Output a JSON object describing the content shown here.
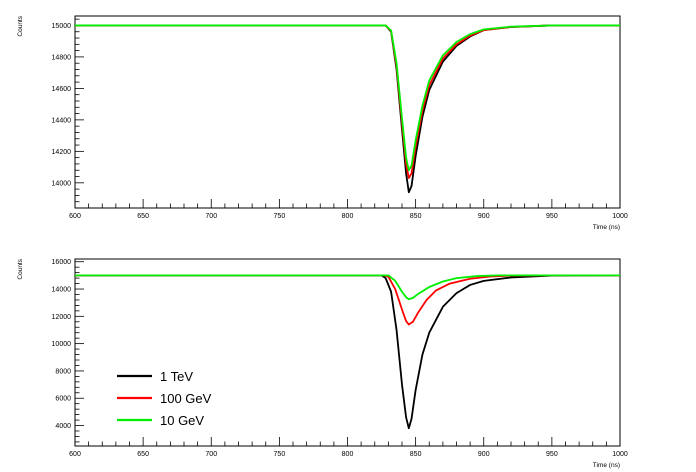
{
  "chart_data": [
    {
      "type": "line",
      "xlabel": "Time (ns)",
      "ylabel": "Counts",
      "xlim": [
        600,
        1000
      ],
      "ylim": [
        13840,
        15060
      ],
      "x_ticks": [
        "600",
        "650",
        "700",
        "750",
        "800",
        "850",
        "900",
        "950",
        "1000"
      ],
      "y_ticks": [
        "14000",
        "14200",
        "14400",
        "14600",
        "14800",
        "15000"
      ],
      "grid": false,
      "baseline": 15000,
      "series": [
        {
          "key": "tev1",
          "color": "#000000",
          "x": [
            600,
            828,
            832,
            836,
            840,
            843,
            845,
            847,
            850,
            855,
            860,
            870,
            880,
            890,
            900,
            920,
            950,
            1000
          ],
          "y": [
            15000,
            15000,
            14960,
            14720,
            14340,
            14060,
            13940,
            13980,
            14170,
            14420,
            14590,
            14770,
            14870,
            14930,
            14970,
            14990,
            15000,
            15000
          ]
        },
        {
          "key": "gev100",
          "color": "#ff0000",
          "x": [
            600,
            828,
            832,
            836,
            840,
            843,
            845,
            847,
            850,
            855,
            860,
            870,
            880,
            890,
            900,
            920,
            950,
            1000
          ],
          "y": [
            15000,
            15000,
            14965,
            14740,
            14380,
            14120,
            14030,
            14060,
            14230,
            14460,
            14620,
            14790,
            14880,
            14935,
            14970,
            14990,
            15000,
            15000
          ]
        },
        {
          "key": "gev10",
          "color": "#00ee00",
          "x": [
            600,
            828,
            832,
            836,
            840,
            843,
            845,
            847,
            850,
            855,
            860,
            870,
            880,
            890,
            900,
            920,
            950,
            1000
          ],
          "y": [
            15000,
            15000,
            14968,
            14760,
            14410,
            14160,
            14080,
            14110,
            14270,
            14490,
            14650,
            14810,
            14895,
            14945,
            14975,
            14992,
            15000,
            15000
          ]
        }
      ]
    },
    {
      "type": "line",
      "xlabel": "Time (ns)",
      "ylabel": "Counts",
      "xlim": [
        600,
        1000
      ],
      "ylim": [
        2500,
        16200
      ],
      "x_ticks": [
        "600",
        "650",
        "700",
        "750",
        "800",
        "850",
        "900",
        "950",
        "1000"
      ],
      "y_ticks": [
        "4000",
        "6000",
        "8000",
        "10000",
        "12000",
        "14000",
        "16000"
      ],
      "grid": false,
      "legend_position": "bottom-left",
      "series": [
        {
          "key": "tev1",
          "name": "1 TeV",
          "color": "#000000",
          "x": [
            600,
            825,
            828,
            832,
            836,
            840,
            843,
            845,
            847,
            850,
            855,
            860,
            870,
            880,
            890,
            900,
            920,
            950,
            1000
          ],
          "y": [
            15000,
            15000,
            14800,
            13800,
            11000,
            7000,
            4600,
            3800,
            4500,
            6600,
            9200,
            10800,
            12700,
            13700,
            14300,
            14600,
            14850,
            14980,
            15000
          ]
        },
        {
          "key": "gev100",
          "name": "100 GeV",
          "color": "#ff0000",
          "x": [
            600,
            827,
            830,
            835,
            840,
            843,
            845,
            848,
            852,
            858,
            865,
            875,
            890,
            905,
            920,
            950,
            1000
          ],
          "y": [
            15000,
            15000,
            14900,
            14000,
            12500,
            11650,
            11400,
            11600,
            12300,
            13200,
            13900,
            14400,
            14750,
            14920,
            14980,
            15000,
            15000
          ]
        },
        {
          "key": "gev10",
          "name": "10 GeV",
          "color": "#00ee00",
          "x": [
            600,
            830,
            835,
            840,
            843,
            845,
            848,
            852,
            860,
            870,
            880,
            895,
            910,
            930,
            1000
          ],
          "y": [
            15000,
            15000,
            14600,
            13800,
            13400,
            13250,
            13350,
            13650,
            14150,
            14550,
            14800,
            14950,
            15000,
            15000,
            15000
          ]
        }
      ]
    }
  ]
}
